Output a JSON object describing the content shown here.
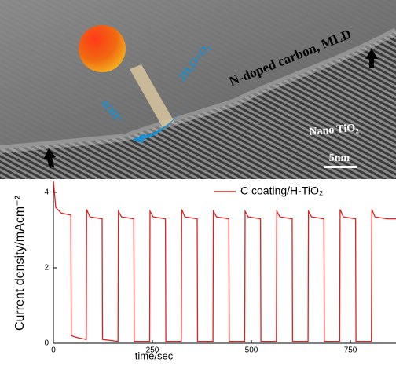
{
  "tem_image": {
    "layer_label": "N-doped carbon, MLD",
    "reaction_product": "2H₂O+O₂",
    "reactant": "4OH⁻",
    "substrate_label": "Nano TiO₂",
    "scale_bar": "5nm"
  },
  "chart_data": {
    "type": "line",
    "y_label": "Current density/mAcm⁻²",
    "x_label": "time/sec",
    "xlim": [
      0,
      865
    ],
    "ylim": [
      0,
      4.27
    ],
    "xticks": [
      0,
      250,
      500,
      750
    ],
    "yticks": [
      0,
      2,
      4
    ],
    "x": [
      0,
      6,
      20,
      44,
      45,
      60,
      83,
      84,
      92,
      123,
      124,
      163,
      164,
      172,
      203,
      204,
      243,
      244,
      252,
      283,
      284,
      323,
      324,
      332,
      363,
      364,
      403,
      404,
      412,
      443,
      444,
      483,
      484,
      492,
      523,
      524,
      563,
      564,
      572,
      603,
      604,
      643,
      644,
      652,
      683,
      684,
      723,
      724,
      732,
      763,
      764,
      803,
      804,
      812,
      843,
      865
    ],
    "series": [
      {
        "name": "C coating/H-TiO₂",
        "color": "#e02020",
        "values": [
          4.3,
          3.6,
          3.45,
          3.4,
          0.2,
          0.15,
          0.1,
          3.55,
          3.35,
          3.3,
          0.1,
          0.05,
          3.5,
          3.35,
          3.3,
          0.05,
          0.05,
          3.5,
          3.35,
          3.3,
          0.05,
          0.05,
          3.55,
          3.35,
          3.3,
          0.05,
          0.05,
          3.5,
          3.35,
          3.3,
          0.05,
          0.05,
          3.5,
          3.35,
          3.3,
          0.05,
          0.05,
          3.5,
          3.35,
          3.3,
          0.05,
          0.05,
          3.5,
          3.35,
          3.3,
          0.05,
          0.05,
          3.55,
          3.35,
          3.3,
          0.05,
          0.05,
          3.55,
          3.35,
          3.3,
          3.3
        ]
      }
    ]
  }
}
